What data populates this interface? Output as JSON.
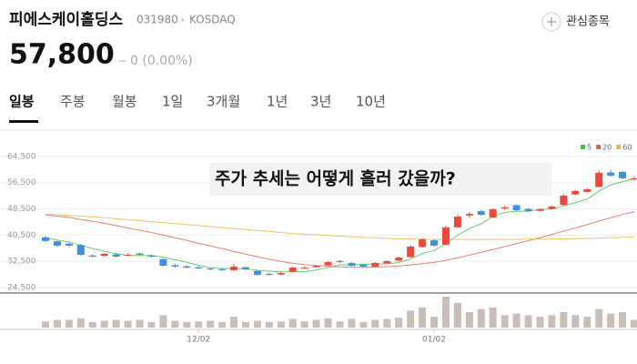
{
  "header": {
    "name": "피에스케이홀딩스",
    "code": "031980",
    "market": "KOSDAQ",
    "watch": "관심종목",
    "price": "57,800",
    "change": "0 (0.00%)"
  },
  "tabs": [
    "일봉",
    "주봉",
    "월봉",
    "1일",
    "3개월",
    "1년",
    "3년",
    "10년"
  ],
  "chart_data": {
    "type": "candlestick",
    "annotation": "주가 추세는 어떻게 흘러 갔을까?",
    "categories": [
      null,
      null,
      null,
      null,
      null,
      null,
      null,
      null,
      null,
      null,
      null,
      null,
      null,
      "12/02",
      null,
      null,
      null,
      null,
      null,
      null,
      null,
      null,
      null,
      null,
      null,
      null,
      null,
      null,
      null,
      null,
      null,
      null,
      null,
      "01/02",
      null,
      null,
      null,
      null,
      null,
      null,
      null,
      null,
      null,
      null,
      null,
      null,
      null,
      null,
      null,
      null,
      null
    ],
    "open": [
      39800,
      38600,
      37900,
      37500,
      34300,
      34200,
      34600,
      34300,
      34900,
      34300,
      33200,
      31300,
      31000,
      30700,
      30300,
      30100,
      29800,
      30700,
      29600,
      28700,
      28500,
      29300,
      30400,
      30700,
      31300,
      32600,
      32000,
      31500,
      30900,
      31900,
      32700,
      33800,
      36900,
      38900,
      37600,
      42900,
      46500,
      47800,
      45900,
      48600,
      49600,
      48500,
      47900,
      48500,
      49700,
      52900,
      53700,
      55200,
      59600,
      59800,
      57800
    ],
    "high": [
      40300,
      38900,
      38200,
      37800,
      34700,
      35100,
      35000,
      34900,
      35200,
      34600,
      33400,
      31700,
      31300,
      31000,
      30700,
      30400,
      31700,
      30900,
      29900,
      29000,
      29200,
      30900,
      30900,
      31400,
      32600,
      32900,
      32300,
      31700,
      32300,
      32800,
      34000,
      37400,
      39600,
      39300,
      43400,
      46600,
      47500,
      48200,
      48700,
      49400,
      49900,
      48800,
      48700,
      49600,
      53000,
      54300,
      54900,
      60200,
      60400,
      60100,
      58500
    ],
    "low": [
      38400,
      37000,
      36800,
      34200,
      33600,
      33900,
      33700,
      34000,
      34200,
      33700,
      30900,
      30600,
      30300,
      30100,
      29800,
      29500,
      29600,
      29800,
      28100,
      28100,
      28300,
      29100,
      30200,
      30500,
      31100,
      32000,
      30900,
      30600,
      30700,
      31700,
      32500,
      33600,
      36700,
      37000,
      37400,
      42700,
      45900,
      46400,
      45700,
      48300,
      47800,
      47600,
      47700,
      48300,
      49500,
      52700,
      53500,
      55000,
      58300,
      57500,
      57100
    ],
    "close": [
      38700,
      37300,
      37300,
      34500,
      33950,
      34800,
      33950,
      34500,
      34500,
      33950,
      31150,
      30900,
      30600,
      30350,
      30050,
      29800,
      30900,
      30050,
      28400,
      28400,
      28950,
      30600,
      30600,
      31150,
      32300,
      32300,
      31150,
      30900,
      32000,
      32550,
      33650,
      37000,
      39200,
      37300,
      42850,
      46150,
      47000,
      46700,
      48400,
      48950,
      48100,
      47850,
      48400,
      49200,
      52550,
      53950,
      54500,
      59500,
      58650,
      57850,
      57800
    ],
    "up_color": "#e84a3c",
    "down_color": "#3f8fe0",
    "series": [
      {
        "name": "5",
        "color": "#3fc24a",
        "values": [
          39600,
          39000,
          38400,
          37400,
          36400,
          35600,
          34800,
          34300,
          34300,
          34300,
          33800,
          33000,
          32200,
          31300,
          30600,
          30300,
          30300,
          30200,
          29800,
          29500,
          29300,
          29300,
          29400,
          29900,
          30600,
          31400,
          31500,
          31600,
          31700,
          31800,
          32100,
          33200,
          34900,
          35800,
          37900,
          40500,
          42500,
          44000,
          46200,
          47400,
          47800,
          47800,
          48300,
          48500,
          49400,
          50400,
          51500,
          53900,
          55800,
          56800,
          57700
        ]
      },
      {
        "name": "20",
        "color": "#e8604c",
        "values": [
          46700,
          46300,
          45900,
          45300,
          44700,
          44100,
          43400,
          42700,
          42000,
          41300,
          40500,
          39700,
          38900,
          38000,
          37200,
          36400,
          35500,
          34700,
          33900,
          33100,
          32500,
          31900,
          31500,
          31200,
          31000,
          30800,
          30700,
          30700,
          30800,
          30900,
          31100,
          31400,
          31800,
          32200,
          32800,
          33600,
          34400,
          35300,
          36100,
          37000,
          37900,
          38800,
          39700,
          40700,
          41700,
          42700,
          43700,
          44800,
          45800,
          46800,
          47600
        ]
      },
      {
        "name": "60",
        "color": "#f0b43c",
        "values": [
          46900,
          46700,
          46500,
          46300,
          46100,
          45800,
          45500,
          45200,
          44900,
          44600,
          44300,
          44000,
          43700,
          43400,
          43100,
          42800,
          42500,
          42200,
          41900,
          41600,
          41300,
          41000,
          40800,
          40600,
          40400,
          40200,
          40000,
          39800,
          39700,
          39500,
          39400,
          39300,
          39300,
          39200,
          39200,
          39200,
          39200,
          39200,
          39200,
          39200,
          39200,
          39300,
          39300,
          39300,
          39400,
          39400,
          39500,
          39600,
          39700,
          39800,
          39900
        ]
      }
    ],
    "volume": [
      20,
      25,
      25,
      30,
      18,
      22,
      25,
      22,
      25,
      18,
      40,
      22,
      18,
      20,
      22,
      18,
      35,
      18,
      22,
      18,
      20,
      28,
      20,
      25,
      30,
      20,
      28,
      18,
      25,
      28,
      32,
      55,
      65,
      35,
      100,
      80,
      50,
      60,
      65,
      40,
      45,
      40,
      35,
      40,
      50,
      40,
      35,
      60,
      45,
      50,
      25
    ],
    "volume_color": "#c9bfb8",
    "volume_lim": [
      0,
      100
    ],
    "ylim": [
      23400,
      67800
    ],
    "yticks": [
      {
        "value": 64500,
        "label": "64,500"
      },
      {
        "value": 56500,
        "label": "56,500"
      },
      {
        "value": 48500,
        "label": "48,500"
      },
      {
        "value": 40500,
        "label": "40,500"
      },
      {
        "value": 32500,
        "label": "32,500"
      },
      {
        "value": 24500,
        "label": "24,500"
      }
    ],
    "grid": true,
    "legend": "top-right"
  }
}
